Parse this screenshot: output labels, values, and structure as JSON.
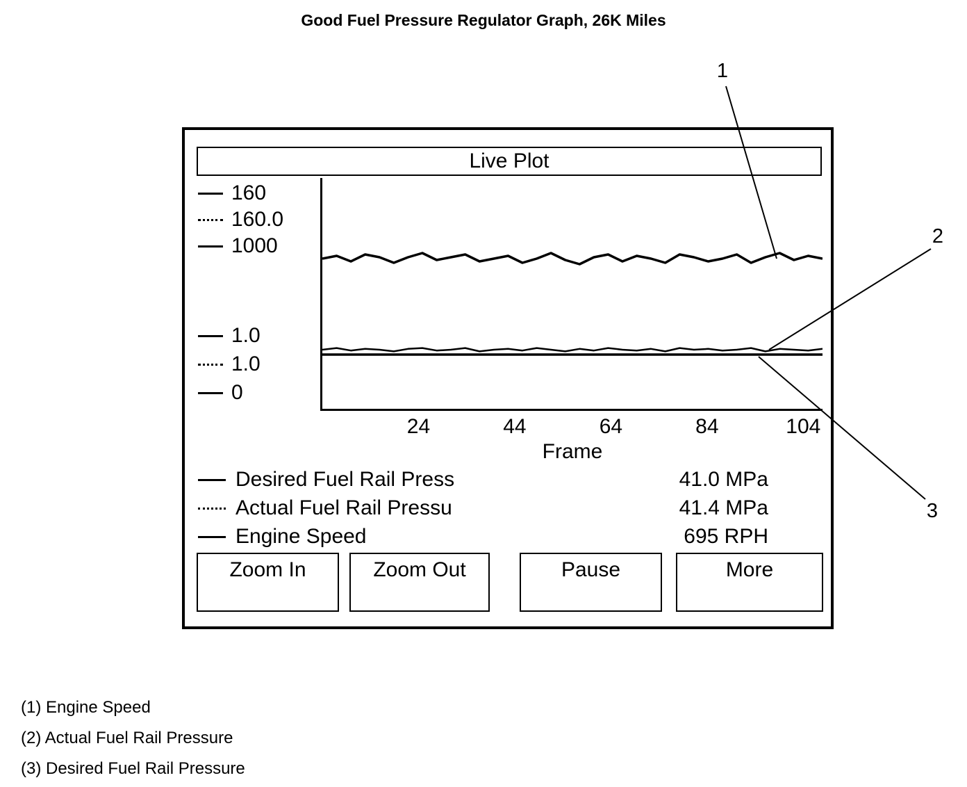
{
  "title": "Good Fuel Pressure Regulator Graph, 26K Miles",
  "live_plot": {
    "header": "Live Plot",
    "y_ticks": [
      {
        "label": "160",
        "style": "solid"
      },
      {
        "label": "160.0",
        "style": "dotted"
      },
      {
        "label": "1000",
        "style": "solid"
      },
      {
        "label": "1.0",
        "style": "solid"
      },
      {
        "label": "1.0",
        "style": "dotted"
      },
      {
        "label": "0",
        "style": "solid"
      }
    ],
    "x_label": "Frame",
    "legend": [
      {
        "tick": "solid",
        "label": "Desired Fuel Rail Press",
        "value": "41.0 MPa"
      },
      {
        "tick": "dotted",
        "label": "Actual Fuel Rail Pressu",
        "value": "41.4 MPa"
      },
      {
        "tick": "solid",
        "label": "Engine Speed",
        "value": "695 RPH"
      }
    ],
    "buttons": [
      "Zoom In",
      "Zoom Out",
      "Pause",
      "More"
    ]
  },
  "callouts": [
    "1",
    "2",
    "3"
  ],
  "footnotes": [
    "(1) Engine Speed",
    "(2) Actual Fuel Rail Pressure",
    "(3) Desired Fuel Rail Pressure"
  ],
  "chart_data": {
    "type": "line",
    "title": "Live Plot",
    "xlabel": "Frame",
    "xlim": [
      4,
      108
    ],
    "x_ticks": [
      24,
      44,
      64,
      84,
      104
    ],
    "grid": false,
    "legend_position": "below",
    "series": [
      {
        "name": "Engine Speed",
        "unit": "RPH",
        "axis_range": [
          0,
          1000
        ],
        "current_value": 695,
        "line_style": "solid",
        "values": [
          697,
          699,
          695,
          700,
          698,
          694,
          698,
          701,
          696,
          698,
          700,
          695,
          697,
          699,
          694,
          697,
          701,
          696,
          693,
          698,
          700,
          695,
          699,
          697,
          694,
          700,
          698,
          695,
          697,
          700,
          694,
          698,
          701,
          696,
          699,
          697
        ]
      },
      {
        "name": "Actual Fuel Rail Pressure",
        "unit": "MPa",
        "axis_range": [
          1.0,
          160.0
        ],
        "current_value": 41.4,
        "line_style": "dotted",
        "values": [
          41.4,
          41.6,
          41.3,
          41.5,
          41.4,
          41.2,
          41.5,
          41.6,
          41.3,
          41.4,
          41.6,
          41.2,
          41.4,
          41.5,
          41.3,
          41.6,
          41.4,
          41.2,
          41.5,
          41.3,
          41.6,
          41.4,
          41.3,
          41.5,
          41.2,
          41.6,
          41.4,
          41.5,
          41.3,
          41.4,
          41.6,
          41.2,
          41.5,
          41.4,
          41.3,
          41.5
        ]
      },
      {
        "name": "Desired Fuel Rail Pressure",
        "unit": "MPa",
        "axis_range": [
          1.0,
          160.0
        ],
        "current_value": 41.0,
        "line_style": "solid",
        "values": [
          41.0,
          41.0,
          41.0,
          41.0,
          41.0,
          41.0,
          41.0,
          41.0,
          41.0,
          41.0,
          41.0,
          41.0,
          41.0,
          41.0,
          41.0,
          41.0,
          41.0,
          41.0,
          41.0,
          41.0,
          41.0,
          41.0,
          41.0,
          41.0,
          41.0,
          41.0,
          41.0,
          41.0,
          41.0,
          41.0,
          41.0,
          41.0,
          41.0,
          41.0,
          41.0,
          41.0
        ]
      }
    ]
  }
}
